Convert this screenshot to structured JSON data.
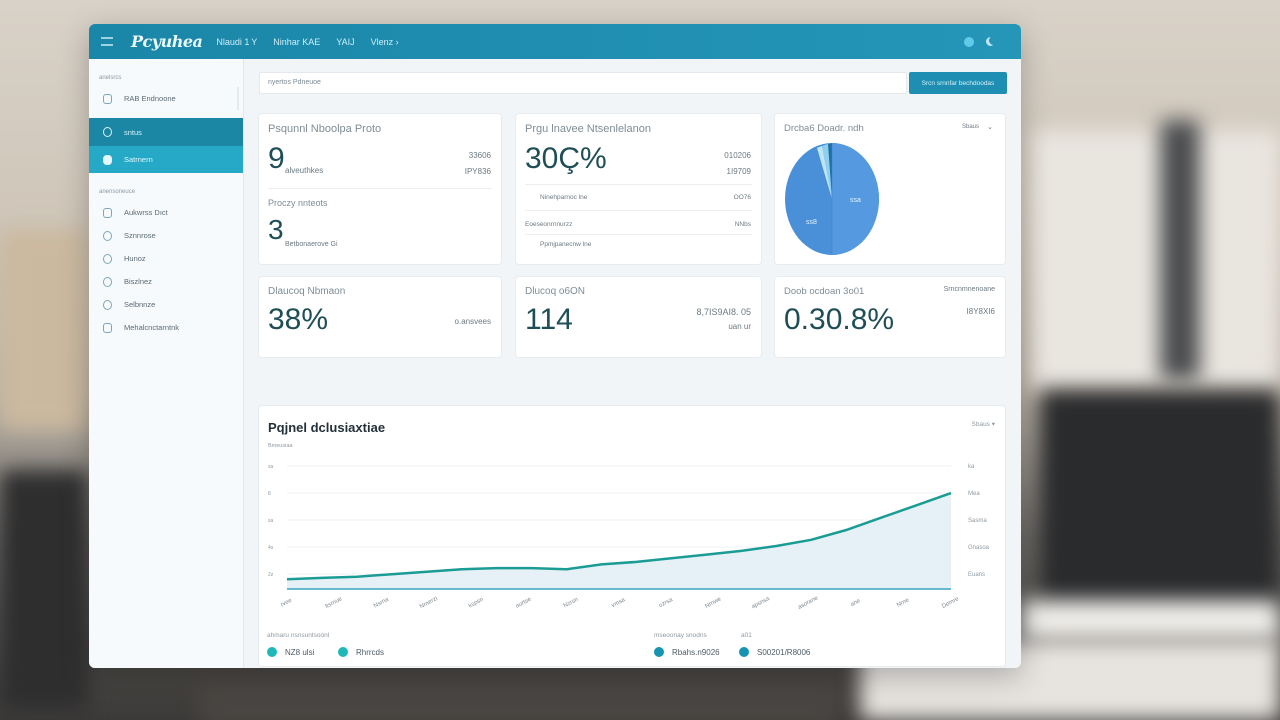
{
  "topbar": {
    "app_name": "Pcyuhea",
    "nav": [
      "Nlaudi 1 Y",
      "Ninhar KAE",
      "YAIJ",
      "Vlenz ›"
    ]
  },
  "search": {
    "placeholder": "nyertos Pdneuoe",
    "button_label": "Srcn srnnfar bechdoodas"
  },
  "sidebar": {
    "section1": "anelsrcs",
    "item_top": "RAB Endnoone",
    "active_items": [
      "sntus",
      "Satrnern"
    ],
    "section2": "anensoneuce",
    "items": [
      "Aukwrss Dıct",
      "Sznnrose",
      "Hunoz",
      "Biszlnez",
      "Selbnnze",
      "Mehalcnctarntnk"
    ]
  },
  "cards": {
    "c1": {
      "title": "Psqunnl Nboolpa Proto",
      "value": "9",
      "sub": "alveuthkes",
      "right1": "33606",
      "right2": "IPY836",
      "section2_title": "Proczy nnteots",
      "value2": "3",
      "sub2": "Betbonaerove Gi"
    },
    "c2": {
      "title": "Prgu lnavee Ntsenlelanon",
      "value": "30Ç%",
      "right1": "010206",
      "right2": "1I9709",
      "rows": [
        {
          "label": "Ninehparnoc lne",
          "value": "OO76"
        },
        {
          "label": "Eoeseonrnnurzz",
          "value": "NNbs"
        },
        {
          "label": "Ppmjpanecnw lne",
          "value": ""
        }
      ]
    },
    "c3": {
      "title": "Drcba6 Doadr. ndh",
      "menu": "Sbaus",
      "pie_labels": [
        "ssa",
        "ss8"
      ]
    },
    "c4": {
      "title": "Dlaucoq Nbmaon",
      "value": "38%",
      "right": "o.ansvees"
    },
    "c5": {
      "title": "Dlucoq   o6ON",
      "value": "114",
      "right1": "8,7IS9AI8. 05",
      "right2": "uan ur"
    },
    "c6": {
      "title": "Doob ocdoan 3o01",
      "value": "0.30.8%",
      "right1": "Srncnmnenoane",
      "right2": "I8Y8XI6"
    }
  },
  "chart": {
    "title": "Pqjnel dclusiaxtiae",
    "subtitle": "Bmeusiaa",
    "control": "Sbaus ▾",
    "y_left": [
      "sa",
      "8",
      "sa",
      "4s",
      "2z"
    ],
    "y_right": [
      "ka",
      "Mea",
      "Sasma",
      "Gnasoa",
      "Euans"
    ],
    "x_labels": [
      "rvee",
      "ltsrnue",
      "Nsrna",
      "Nrnerzi",
      "kspsn",
      "aurtse",
      "Nzrsn",
      "vmsa",
      "ozrsa",
      "Nrnwe",
      "apsnsa",
      "asorane",
      "ane",
      "Nrne",
      "Demre"
    ]
  },
  "chart_data": {
    "type": "area",
    "title": "Pqjnel dclusiaxtiae",
    "x": [
      1,
      2,
      3,
      4,
      5,
      6,
      7,
      8,
      9,
      10,
      11,
      12,
      13,
      14,
      15,
      16,
      17,
      18,
      19,
      20
    ],
    "values": [
      8,
      9,
      10,
      12,
      14,
      16,
      17,
      17,
      16,
      20,
      22,
      25,
      28,
      31,
      35,
      40,
      48,
      58,
      68,
      78
    ],
    "ylim": [
      0,
      100
    ],
    "xlabel": "",
    "ylabel": ""
  },
  "legends": {
    "left": {
      "title": "ahmaru nsnsuntsoonl",
      "items": [
        {
          "label": "NZ8 ulsi",
          "color": "#1fb8b9"
        },
        {
          "label": "Rhrrcds",
          "color": "#1fb8b9"
        }
      ]
    },
    "right": {
      "title": "mseoonay snodns",
      "extra": "a01",
      "items": [
        {
          "label": "Rbahs.n9026",
          "color": "#1694b2"
        },
        {
          "label": "S00201/R8006",
          "color": "#1694b2"
        }
      ]
    }
  },
  "colors": {
    "brand": "#1a86a8",
    "accent": "#25a9c7",
    "line": "#1a9c95",
    "pie": "#4a90d9"
  }
}
